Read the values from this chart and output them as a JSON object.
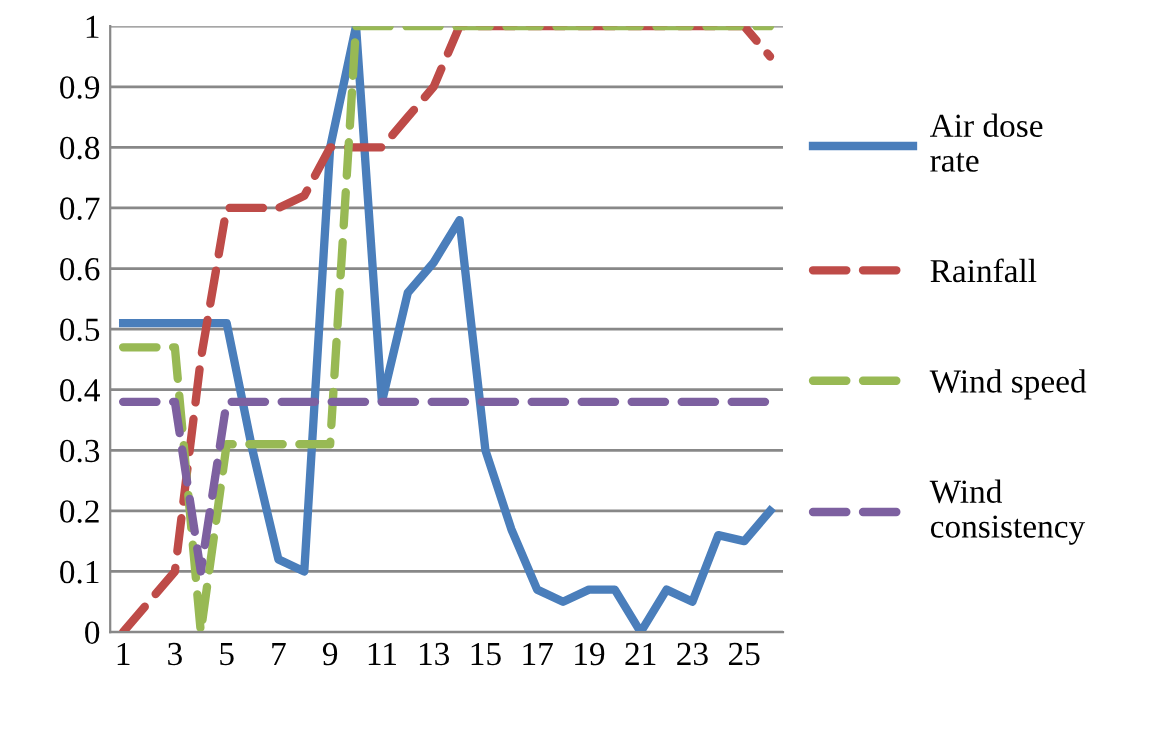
{
  "chart_data": {
    "type": "line",
    "categories": [
      "1",
      null,
      "3",
      null,
      "5",
      null,
      "7",
      null,
      "9",
      null,
      "11",
      null,
      "13",
      null,
      "15",
      null,
      "17",
      null,
      "19",
      null,
      "21",
      null,
      "23",
      null,
      "25",
      null
    ],
    "series": [
      {
        "name": "Air dose rate",
        "color": "#4a7ebb",
        "line_style": "solid",
        "values": [
          0.51,
          0.51,
          0.51,
          0.51,
          0.51,
          0.3,
          0.12,
          0.1,
          0.8,
          1.0,
          0.38,
          0.56,
          0.61,
          0.68,
          0.3,
          0.17,
          0.07,
          0.05,
          0.07,
          0.07,
          0,
          0.07,
          0.05,
          0.16,
          0.15,
          0.2
        ]
      },
      {
        "name": "Rainfall",
        "color": "#be4b48",
        "line_style": "dashed",
        "values": [
          0,
          0.05,
          0.1,
          0.45,
          0.7,
          0.7,
          0.7,
          0.72,
          0.8,
          0.8,
          0.8,
          0.85,
          0.9,
          1,
          1,
          1,
          1,
          1,
          1,
          1,
          1,
          1,
          1,
          1,
          1,
          0.95
        ]
      },
      {
        "name": "Wind speed",
        "color": "#98b954",
        "line_style": "dashed",
        "values": [
          0.47,
          0.47,
          0.47,
          0,
          0.31,
          0.31,
          0.31,
          0.31,
          0.31,
          1,
          1,
          1,
          1,
          1,
          1,
          1,
          1,
          1,
          1,
          1,
          1,
          1,
          1,
          1,
          1,
          1
        ]
      },
      {
        "name": "Wind consistency",
        "color": "#7d60a0",
        "line_style": "dashed",
        "values": [
          0.38,
          0.38,
          0.38,
          0.1,
          0.38,
          0.38,
          0.38,
          0.38,
          0.38,
          0.38,
          0.38,
          0.38,
          0.38,
          0.38,
          0.38,
          0.38,
          0.38,
          0.38,
          0.38,
          0.38,
          0.38,
          0.38,
          0.38,
          0.38,
          0.38,
          0.38
        ]
      }
    ],
    "ylim": [
      0,
      1
    ],
    "yticks": [
      0,
      0.1,
      0.2,
      0.3,
      0.4,
      0.5,
      0.6,
      0.7,
      0.8,
      0.9,
      1
    ],
    "grid": "y",
    "legend": "right",
    "marker": "none"
  }
}
